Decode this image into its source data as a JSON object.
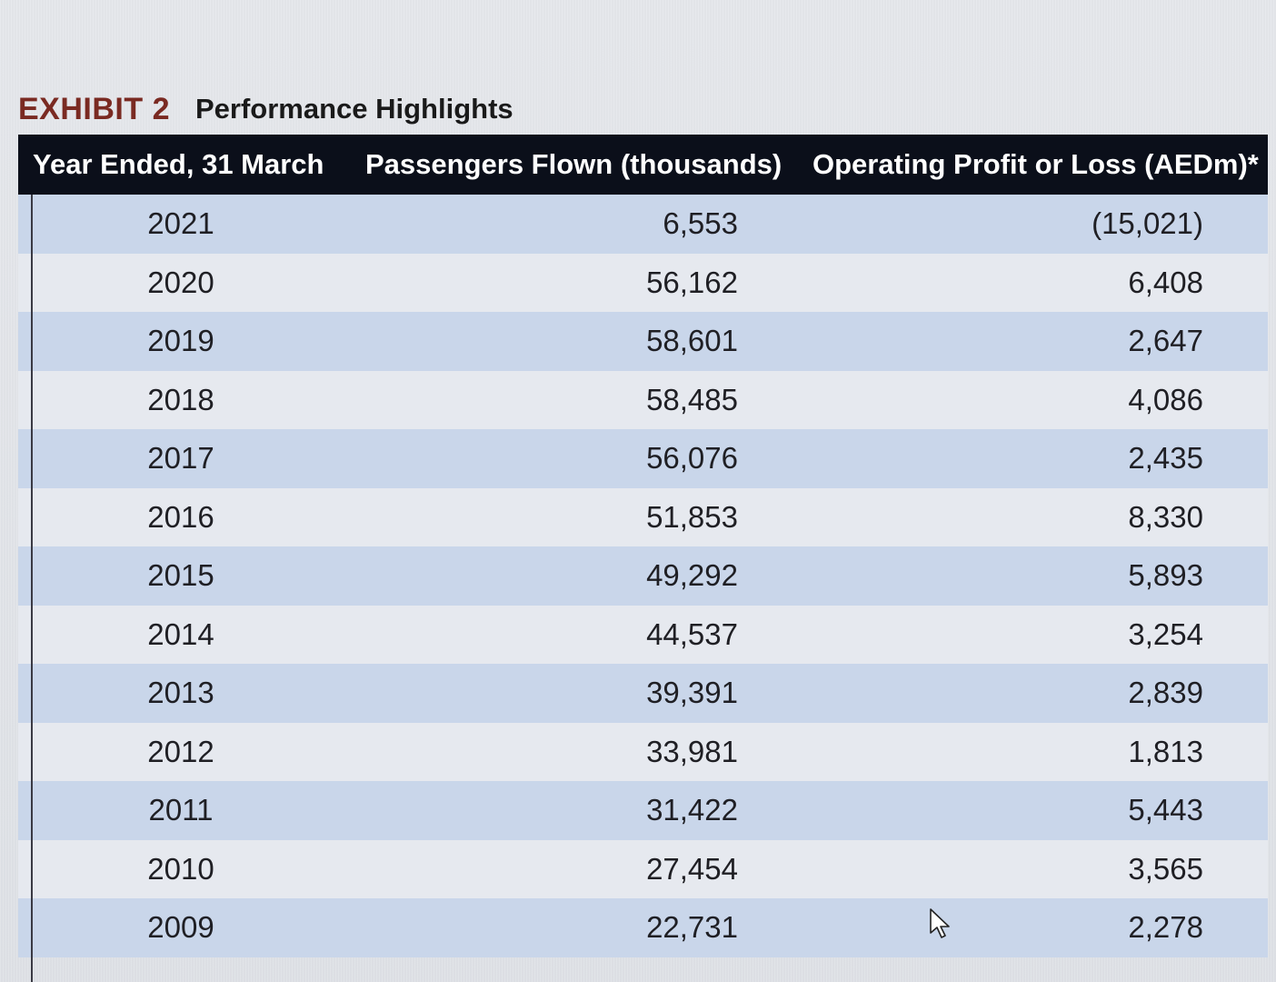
{
  "exhibit": {
    "label": "EXHIBIT 2",
    "title": "Performance Highlights"
  },
  "table": {
    "headers": {
      "year": "Year Ended, 31 March",
      "passengers": "Passengers Flown (thousands)",
      "profit": "Operating Profit or Loss (AEDm)*"
    },
    "rows": [
      {
        "year": "2021",
        "passengers": "6,553",
        "profit": "(15,021)"
      },
      {
        "year": "2020",
        "passengers": "56,162",
        "profit": "6,408"
      },
      {
        "year": "2019",
        "passengers": "58,601",
        "profit": "2,647"
      },
      {
        "year": "2018",
        "passengers": "58,485",
        "profit": "4,086"
      },
      {
        "year": "2017",
        "passengers": "56,076",
        "profit": "2,435"
      },
      {
        "year": "2016",
        "passengers": "51,853",
        "profit": "8,330"
      },
      {
        "year": "2015",
        "passengers": "49,292",
        "profit": "5,893"
      },
      {
        "year": "2014",
        "passengers": "44,537",
        "profit": "3,254"
      },
      {
        "year": "2013",
        "passengers": "39,391",
        "profit": "2,839"
      },
      {
        "year": "2012",
        "passengers": "33,981",
        "profit": "1,813"
      },
      {
        "year": "2011",
        "passengers": "31,422",
        "profit": "5,443"
      },
      {
        "year": "2010",
        "passengers": "27,454",
        "profit": "3,565"
      },
      {
        "year": "2009",
        "passengers": "22,731",
        "profit": "2,278"
      }
    ]
  },
  "colors": {
    "header_bg": "#0b0f1a",
    "row_odd": "#c9d6ea",
    "row_even": "#e6e9ef",
    "exhibit_label": "#7a2a22"
  },
  "icons": {
    "cursor": "mouse-pointer-icon"
  }
}
